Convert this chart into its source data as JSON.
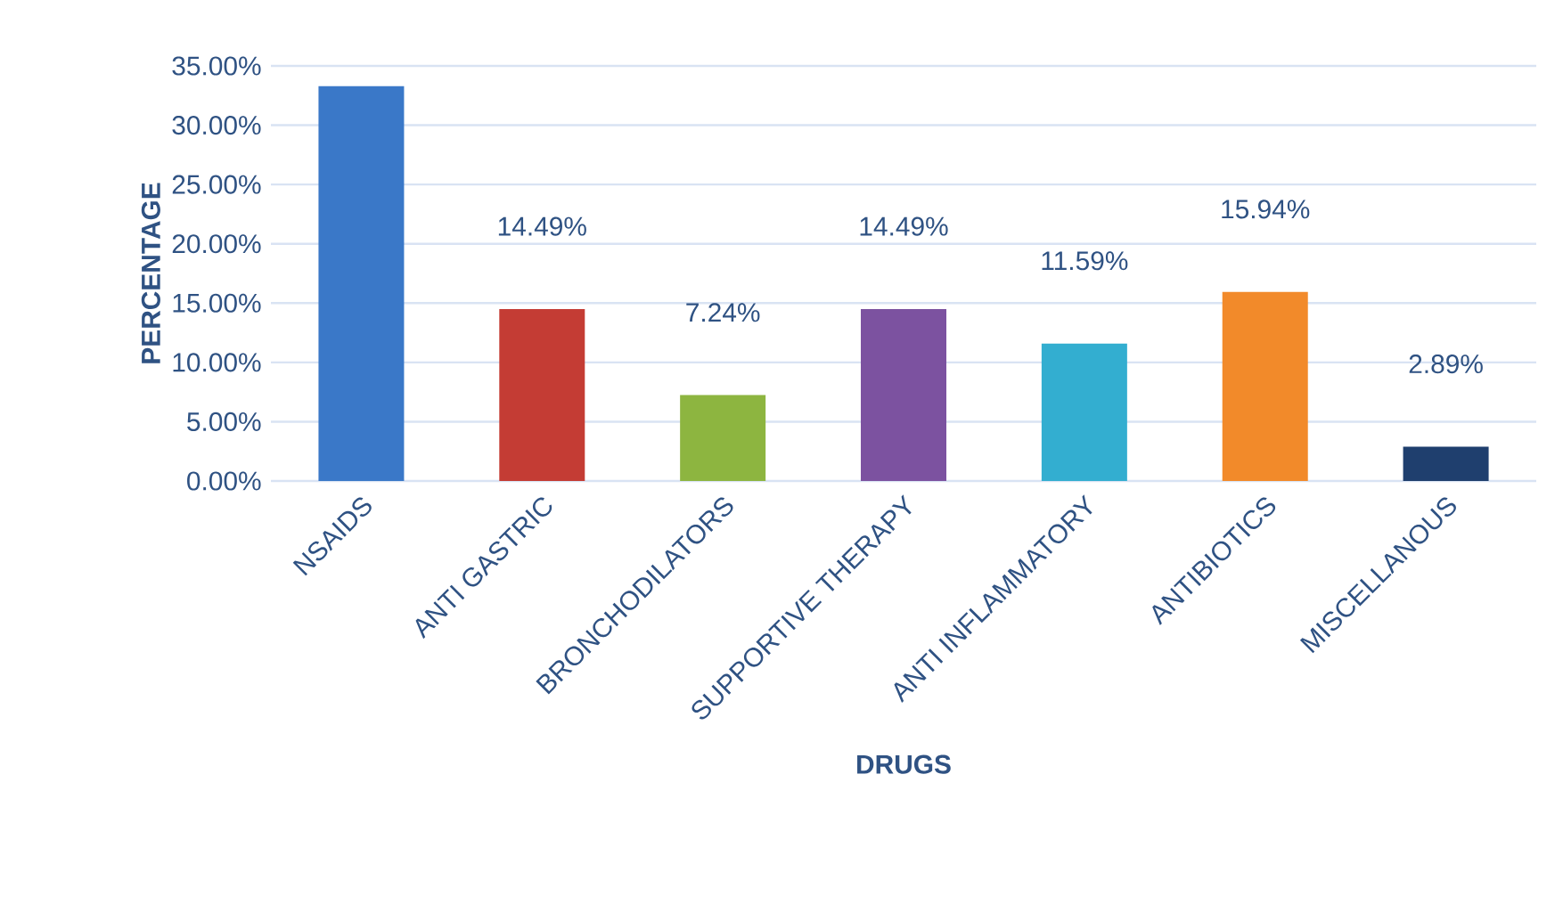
{
  "chart_data": {
    "type": "bar",
    "xlabel": "DRUGS",
    "ylabel": "PERCENTAGE",
    "categories": [
      "NSAIDS",
      "ANTI GASTRIC",
      "BRONCHODILATORS",
      "SUPPORTIVE THERAPY",
      "ANTI INFLAMMATORY",
      "ANTIBIOTICS",
      "MISCELLANOUS"
    ],
    "values": [
      33.3,
      14.49,
      7.24,
      14.49,
      11.59,
      15.94,
      2.89
    ],
    "colors": [
      "#3a78c8",
      "#c43c34",
      "#8db540",
      "#7c52a0",
      "#33aed0",
      "#f28a2a",
      "#1f3f6e"
    ],
    "value_labels": [
      null,
      "14.49%",
      "7.24%",
      "14.49%",
      "11.59%",
      "15.94%",
      "2.89%"
    ],
    "ylim": [
      0,
      35
    ],
    "yticks": [
      {
        "value": 0,
        "label": "0.00%"
      },
      {
        "value": 5,
        "label": "5.00%"
      },
      {
        "value": 10,
        "label": "10.00%"
      },
      {
        "value": 15,
        "label": "15.00%"
      },
      {
        "value": 20,
        "label": "20.00%"
      },
      {
        "value": 25,
        "label": "25.00%"
      },
      {
        "value": 30,
        "label": "30.00%"
      },
      {
        "value": 35,
        "label": "35.00%"
      }
    ],
    "grid": "y"
  }
}
